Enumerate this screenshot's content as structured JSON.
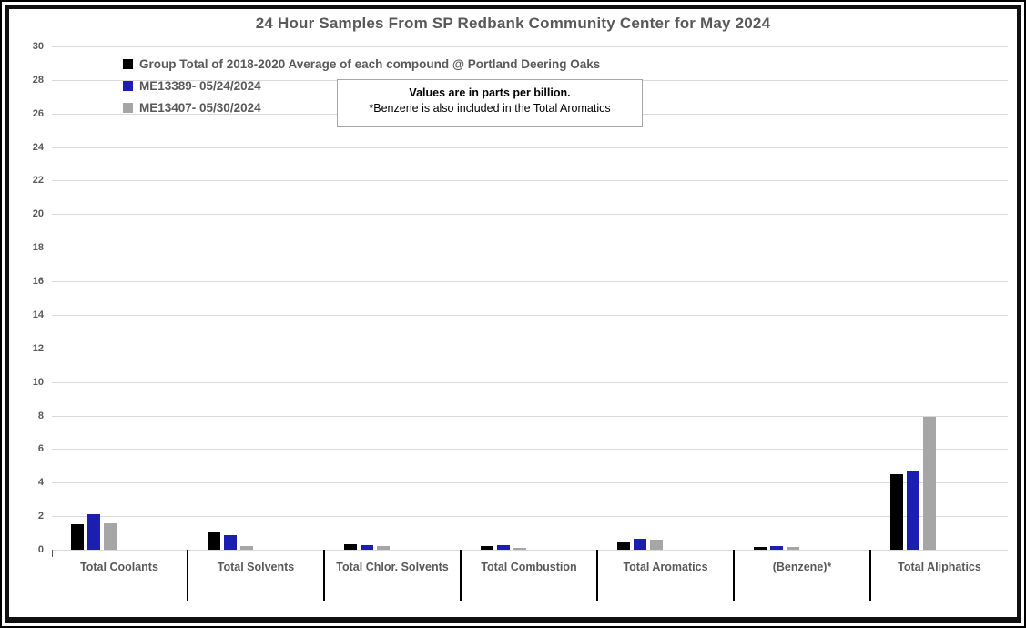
{
  "title": "24 Hour Samples From SP Redbank Community Center for May 2024",
  "annotation": {
    "line1": "Values are in parts per billion.",
    "line2": "*Benzene is also included in the Total Aromatics"
  },
  "colors": {
    "series_black": "#000000",
    "series_blue": "#1c1eaf",
    "series_gray": "#a6a6a6",
    "gridline": "#d9d9d9",
    "axis_text": "#595959",
    "separator": "#000000",
    "annotation_border": "#a6a6a6"
  },
  "chart_data": {
    "type": "bar",
    "title": "24 Hour Samples From SP Redbank Community Center for May 2024",
    "categories": [
      "Total Coolants",
      "Total Solvents",
      "Total Chlor. Solvents",
      "Total Combustion",
      "Total Aromatics",
      "(Benzene)*",
      "Total Aliphatics"
    ],
    "series": [
      {
        "name": "Group Total of 2018-2020 Average of each compound @ Portland Deering Oaks",
        "color": "#000000",
        "values": [
          1.5,
          1.1,
          0.3,
          0.2,
          0.5,
          0.15,
          4.5
        ]
      },
      {
        "name": "ME13389- 05/24/2024",
        "color": "#1c1eaf",
        "values": [
          2.1,
          0.85,
          0.25,
          0.25,
          0.65,
          0.2,
          4.7
        ]
      },
      {
        "name": "ME13407- 05/30/2024",
        "color": "#a6a6a6",
        "values": [
          1.6,
          0.2,
          0.2,
          0.1,
          0.6,
          0.15,
          7.9
        ]
      }
    ],
    "xlabel": "",
    "ylabel": "",
    "ylim": [
      0,
      30
    ],
    "ytick_step": 2,
    "ytick_labels": [
      "0",
      "2",
      "4",
      "6",
      "8",
      "10",
      "12",
      "14",
      "16",
      "18",
      "20",
      "22",
      "24",
      "26",
      "28",
      "30"
    ],
    "grid": true,
    "legend_position": "top-left",
    "units": "parts per billion"
  }
}
